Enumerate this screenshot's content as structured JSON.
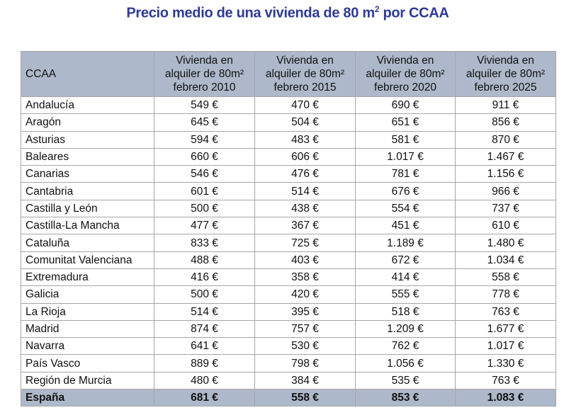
{
  "title": "Precio medio de una vivienda de 80 m",
  "title_sup": "2",
  "title_suffix": " por CCAA",
  "colors": {
    "title": "#2f3a96",
    "header_bg": "#adb9ca",
    "border": "#a6a6a6"
  },
  "table": {
    "headers": [
      {
        "lines": [
          "CCAA"
        ]
      },
      {
        "line1": "Vivienda en",
        "line2": "alquiler de 80m²",
        "line3": "febrero 2010"
      },
      {
        "line1": "Vivienda en",
        "line2": "alquiler de 80m²",
        "line3": "febrero 2015"
      },
      {
        "line1": "Vivienda en",
        "line2": "alquiler de 80m²",
        "line3": "febrero 2020"
      },
      {
        "line1": "Vivienda en",
        "line2": "alquiler de 80m²",
        "line3": "febrero 2025"
      }
    ],
    "rows": [
      [
        "Andalucía",
        "549 €",
        "470 €",
        "690 €",
        "911 €"
      ],
      [
        "Aragón",
        "645 €",
        "504 €",
        "651 €",
        "856 €"
      ],
      [
        "Asturias",
        "594 €",
        "483 €",
        "581 €",
        "870 €"
      ],
      [
        "Baleares",
        "660 €",
        "606 €",
        "1.017 €",
        "1.467 €"
      ],
      [
        "Canarias",
        "546 €",
        "476 €",
        "781 €",
        "1.156 €"
      ],
      [
        "Cantabria",
        "601 €",
        "514 €",
        "676 €",
        "966 €"
      ],
      [
        "Castilla y León",
        "500 €",
        "438 €",
        "554 €",
        "737 €"
      ],
      [
        "Castilla-La Mancha",
        "477 €",
        "367 €",
        "451 €",
        "610 €"
      ],
      [
        "Cataluña",
        "833 €",
        "725 €",
        "1.189 €",
        "1.480 €"
      ],
      [
        "Comunitat Valenciana",
        "488 €",
        "403 €",
        "672 €",
        "1.034 €"
      ],
      [
        "Extremadura",
        "416 €",
        "358 €",
        "414 €",
        "558 €"
      ],
      [
        "Galicia",
        "500 €",
        "420 €",
        "555 €",
        "778 €"
      ],
      [
        "La Rioja",
        "514 €",
        "395 €",
        "518 €",
        "763 €"
      ],
      [
        "Madrid",
        "874 €",
        "757 €",
        "1.209 €",
        "1.677 €"
      ],
      [
        "Navarra",
        "641 €",
        "530 €",
        "762 €",
        "1.017 €"
      ],
      [
        "País Vasco",
        "889 €",
        "798 €",
        "1.056 €",
        "1.330 €"
      ],
      [
        "Región de Murcia",
        "480 €",
        "384 €",
        "535 €",
        "763 €"
      ]
    ],
    "total": [
      "España",
      "681 €",
      "558 €",
      "853 €",
      "1.083 €"
    ]
  }
}
